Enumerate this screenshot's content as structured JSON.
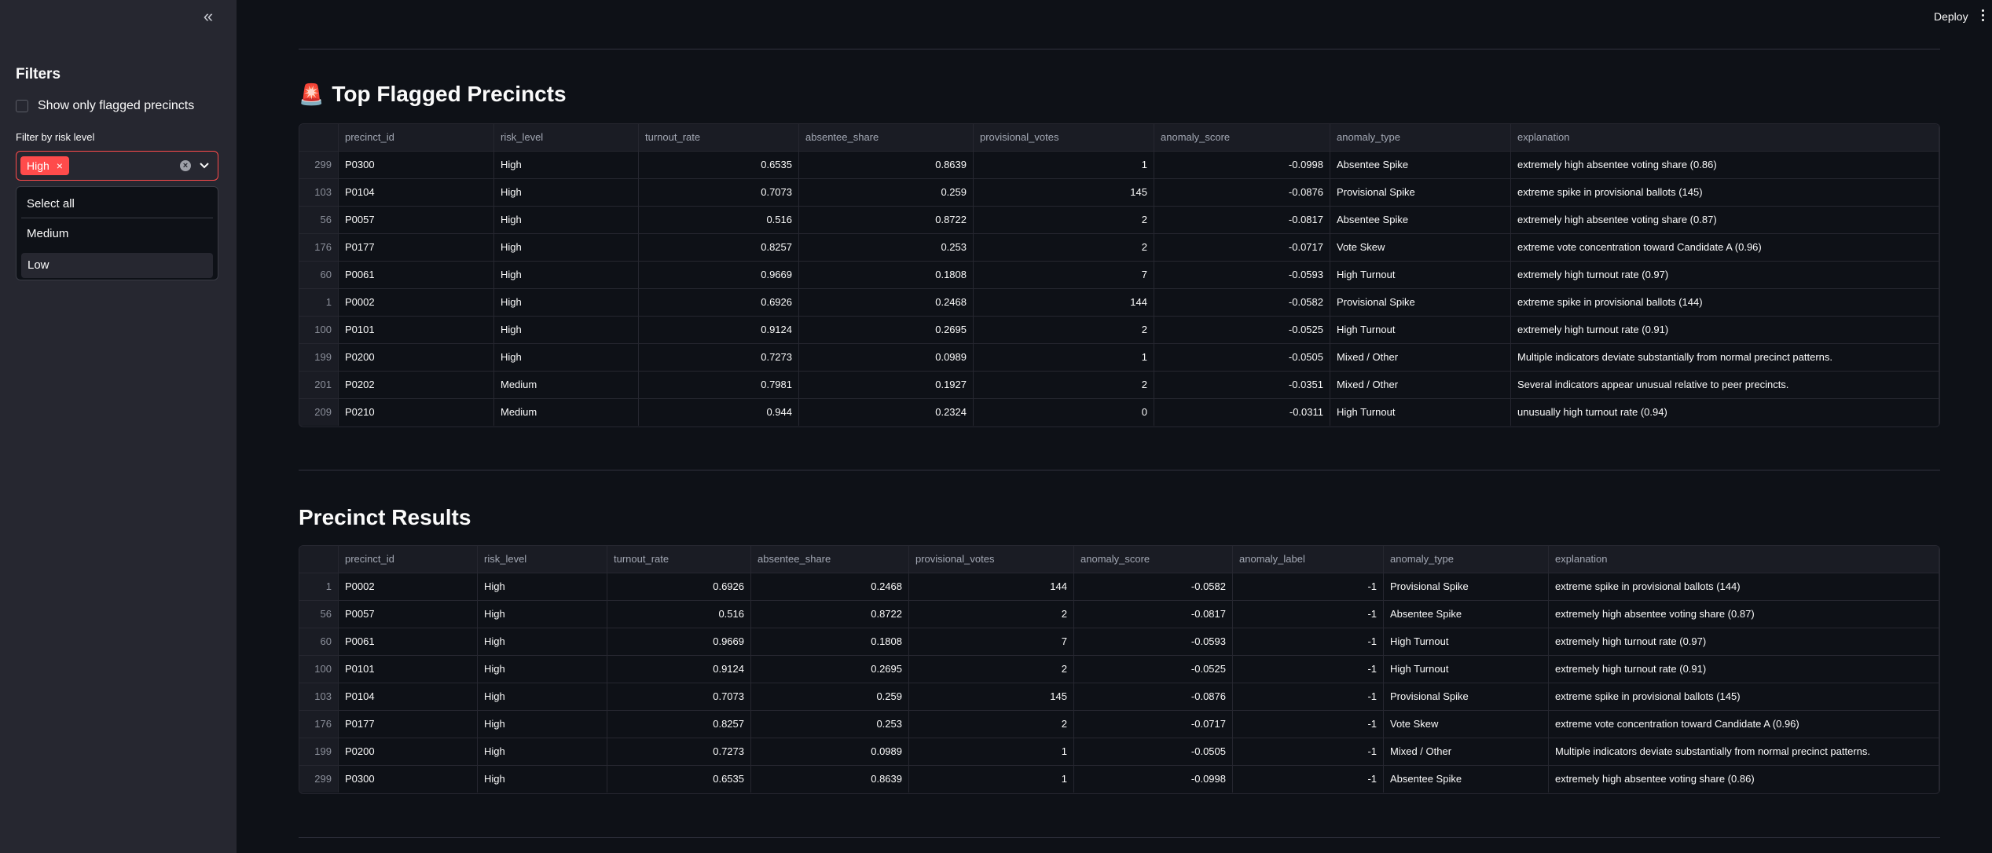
{
  "sidebar": {
    "collapse_icon": "double-chevron-left-icon",
    "title": "Filters",
    "checkbox_label": "Show only flagged precincts",
    "filter_label": "Filter by risk level",
    "selected_chip": "High",
    "chip_remove": "×",
    "clear_icon": "×",
    "dropdown": [
      "Select all",
      "Medium",
      "Low"
    ]
  },
  "topbar": {
    "deploy": "Deploy"
  },
  "colors": {
    "accent": "#ff4b4b",
    "background": "#0e1117",
    "sidebar": "#262730"
  },
  "flagged": {
    "icon": "🚨",
    "title": "Top Flagged Precincts",
    "columns": [
      "",
      "precinct_id",
      "risk_level",
      "turnout_rate",
      "absentee_share",
      "provisional_votes",
      "anomaly_score",
      "anomaly_type",
      "explanation"
    ],
    "rows": [
      [
        "299",
        "P0300",
        "High",
        "0.6535",
        "0.8639",
        "1",
        "-0.0998",
        "Absentee Spike",
        "extremely high absentee voting share (0.86)"
      ],
      [
        "103",
        "P0104",
        "High",
        "0.7073",
        "0.259",
        "145",
        "-0.0876",
        "Provisional Spike",
        "extreme spike in provisional ballots (145)"
      ],
      [
        "56",
        "P0057",
        "High",
        "0.516",
        "0.8722",
        "2",
        "-0.0817",
        "Absentee Spike",
        "extremely high absentee voting share (0.87)"
      ],
      [
        "176",
        "P0177",
        "High",
        "0.8257",
        "0.253",
        "2",
        "-0.0717",
        "Vote Skew",
        "extreme vote concentration toward Candidate A (0.96)"
      ],
      [
        "60",
        "P0061",
        "High",
        "0.9669",
        "0.1808",
        "7",
        "-0.0593",
        "High Turnout",
        "extremely high turnout rate (0.97)"
      ],
      [
        "1",
        "P0002",
        "High",
        "0.6926",
        "0.2468",
        "144",
        "-0.0582",
        "Provisional Spike",
        "extreme spike in provisional ballots (144)"
      ],
      [
        "100",
        "P0101",
        "High",
        "0.9124",
        "0.2695",
        "2",
        "-0.0525",
        "High Turnout",
        "extremely high turnout rate (0.91)"
      ],
      [
        "199",
        "P0200",
        "High",
        "0.7273",
        "0.0989",
        "1",
        "-0.0505",
        "Mixed / Other",
        "Multiple indicators deviate substantially from normal precinct patterns."
      ],
      [
        "201",
        "P0202",
        "Medium",
        "0.7981",
        "0.1927",
        "2",
        "-0.0351",
        "Mixed / Other",
        "Several indicators appear unusual relative to peer precincts."
      ],
      [
        "209",
        "P0210",
        "Medium",
        "0.944",
        "0.2324",
        "0",
        "-0.0311",
        "High Turnout",
        "unusually high turnout rate (0.94)"
      ]
    ]
  },
  "results": {
    "title": "Precinct Results",
    "columns": [
      "",
      "precinct_id",
      "risk_level",
      "turnout_rate",
      "absentee_share",
      "provisional_votes",
      "anomaly_score",
      "anomaly_label",
      "anomaly_type",
      "explanation"
    ],
    "rows": [
      [
        "1",
        "P0002",
        "High",
        "0.6926",
        "0.2468",
        "144",
        "-0.0582",
        "-1",
        "Provisional Spike",
        "extreme spike in provisional ballots (144)"
      ],
      [
        "56",
        "P0057",
        "High",
        "0.516",
        "0.8722",
        "2",
        "-0.0817",
        "-1",
        "Absentee Spike",
        "extremely high absentee voting share (0.87)"
      ],
      [
        "60",
        "P0061",
        "High",
        "0.9669",
        "0.1808",
        "7",
        "-0.0593",
        "-1",
        "High Turnout",
        "extremely high turnout rate (0.97)"
      ],
      [
        "100",
        "P0101",
        "High",
        "0.9124",
        "0.2695",
        "2",
        "-0.0525",
        "-1",
        "High Turnout",
        "extremely high turnout rate (0.91)"
      ],
      [
        "103",
        "P0104",
        "High",
        "0.7073",
        "0.259",
        "145",
        "-0.0876",
        "-1",
        "Provisional Spike",
        "extreme spike in provisional ballots (145)"
      ],
      [
        "176",
        "P0177",
        "High",
        "0.8257",
        "0.253",
        "2",
        "-0.0717",
        "-1",
        "Vote Skew",
        "extreme vote concentration toward Candidate A (0.96)"
      ],
      [
        "199",
        "P0200",
        "High",
        "0.7273",
        "0.0989",
        "1",
        "-0.0505",
        "-1",
        "Mixed / Other",
        "Multiple indicators deviate substantially from normal precinct patterns."
      ],
      [
        "299",
        "P0300",
        "High",
        "0.6535",
        "0.8639",
        "1",
        "-0.0998",
        "-1",
        "Absentee Spike",
        "extremely high absentee voting share (0.86)"
      ]
    ]
  }
}
